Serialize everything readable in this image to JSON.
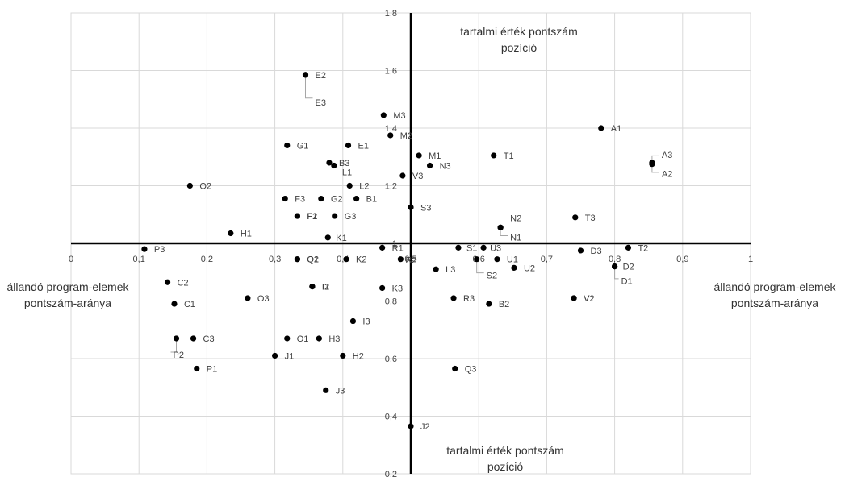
{
  "chart_data": {
    "type": "scatter",
    "title": "",
    "x_range": [
      0,
      1
    ],
    "y_range": [
      0.2,
      1.8
    ],
    "x_ticks": [
      "0",
      "0,1",
      "0,2",
      "0,3",
      "0,4",
      "0,5",
      "0,6",
      "0,7",
      "0,8",
      "0,9",
      "1"
    ],
    "y_ticks": [
      "0,2",
      "0,4",
      "0,6",
      "0,8",
      "1",
      "1,2",
      "1,4",
      "1,6",
      "1,8"
    ],
    "grid": true,
    "y_label_top_line1": "tartalmi érték pontszám",
    "y_label_top_line2": "pozíció",
    "y_label_bottom_line1": "tartalmi érték pontszám",
    "y_label_bottom_line2": "pozíció",
    "x_label_left_line1": "állandó program-elemek",
    "x_label_left_line2": "pontszám-aránya",
    "x_label_right_line1": "állandó program-elemek",
    "x_label_right_line2": "pontszám-aránya",
    "points": [
      {
        "label": "A1",
        "x": 0.78,
        "y": 1.4
      },
      {
        "label": "A2",
        "x": 0.855,
        "y": 1.275
      },
      {
        "label": "A3",
        "x": 0.855,
        "y": 1.28
      },
      {
        "label": "B1",
        "x": 0.42,
        "y": 1.155
      },
      {
        "label": "B2",
        "x": 0.615,
        "y": 0.79
      },
      {
        "label": "B3",
        "x": 0.38,
        "y": 1.28
      },
      {
        "label": "C1",
        "x": 0.152,
        "y": 0.79
      },
      {
        "label": "C2",
        "x": 0.142,
        "y": 0.865
      },
      {
        "label": "C3",
        "x": 0.18,
        "y": 0.67
      },
      {
        "label": "D1",
        "x": 0.8,
        "y": 0.92
      },
      {
        "label": "D2",
        "x": 0.8,
        "y": 0.92
      },
      {
        "label": "D3",
        "x": 0.75,
        "y": 0.975
      },
      {
        "label": "E1",
        "x": 0.408,
        "y": 1.34
      },
      {
        "label": "E2",
        "x": 0.345,
        "y": 1.585
      },
      {
        "label": "E3",
        "x": 0.345,
        "y": 1.585
      },
      {
        "label": "F1",
        "x": 0.333,
        "y": 1.095
      },
      {
        "label": "F2",
        "x": 0.333,
        "y": 1.095
      },
      {
        "label": "F3",
        "x": 0.315,
        "y": 1.155
      },
      {
        "label": "G1",
        "x": 0.318,
        "y": 1.34
      },
      {
        "label": "G2",
        "x": 0.368,
        "y": 1.155
      },
      {
        "label": "G3",
        "x": 0.388,
        "y": 1.095
      },
      {
        "label": "H1",
        "x": 0.235,
        "y": 1.035
      },
      {
        "label": "H2",
        "x": 0.4,
        "y": 0.61
      },
      {
        "label": "H3",
        "x": 0.365,
        "y": 0.67
      },
      {
        "label": "I1",
        "x": 0.355,
        "y": 0.85
      },
      {
        "label": "I2",
        "x": 0.355,
        "y": 0.85
      },
      {
        "label": "I3",
        "x": 0.415,
        "y": 0.73
      },
      {
        "label": "J1",
        "x": 0.3,
        "y": 0.61
      },
      {
        "label": "J2",
        "x": 0.5,
        "y": 0.365
      },
      {
        "label": "J3",
        "x": 0.375,
        "y": 0.49
      },
      {
        "label": "K1",
        "x": 0.378,
        "y": 1.02
      },
      {
        "label": "K2",
        "x": 0.405,
        "y": 0.945
      },
      {
        "label": "K3",
        "x": 0.458,
        "y": 0.845
      },
      {
        "label": "L1",
        "x": 0.387,
        "y": 1.27
      },
      {
        "label": "L2",
        "x": 0.41,
        "y": 1.2
      },
      {
        "label": "L3",
        "x": 0.537,
        "y": 0.91
      },
      {
        "label": "M1",
        "x": 0.512,
        "y": 1.305
      },
      {
        "label": "M2",
        "x": 0.47,
        "y": 1.375
      },
      {
        "label": "M3",
        "x": 0.46,
        "y": 1.445
      },
      {
        "label": "N1",
        "x": 0.632,
        "y": 1.055
      },
      {
        "label": "N2",
        "x": 0.632,
        "y": 1.055
      },
      {
        "label": "N3",
        "x": 0.528,
        "y": 1.27
      },
      {
        "label": "O1",
        "x": 0.318,
        "y": 0.67
      },
      {
        "label": "O2",
        "x": 0.175,
        "y": 1.2
      },
      {
        "label": "O3",
        "x": 0.26,
        "y": 0.81
      },
      {
        "label": "P1",
        "x": 0.185,
        "y": 0.565
      },
      {
        "label": "P2",
        "x": 0.155,
        "y": 0.67
      },
      {
        "label": "P3",
        "x": 0.108,
        "y": 0.98
      },
      {
        "label": "Q1",
        "x": 0.333,
        "y": 0.945
      },
      {
        "label": "Q2",
        "x": 0.333,
        "y": 0.945
      },
      {
        "label": "Q3",
        "x": 0.565,
        "y": 0.565
      },
      {
        "label": "R1",
        "x": 0.458,
        "y": 0.985
      },
      {
        "label": "R2",
        "x": 0.485,
        "y": 0.945
      },
      {
        "label": "R3",
        "x": 0.563,
        "y": 0.81
      },
      {
        "label": "S1",
        "x": 0.57,
        "y": 0.985
      },
      {
        "label": "S2",
        "x": 0.597,
        "y": 0.945
      },
      {
        "label": "S3",
        "x": 0.5,
        "y": 1.125
      },
      {
        "label": "T1",
        "x": 0.622,
        "y": 1.305
      },
      {
        "label": "T2",
        "x": 0.82,
        "y": 0.985
      },
      {
        "label": "T3",
        "x": 0.742,
        "y": 1.09
      },
      {
        "label": "U1",
        "x": 0.627,
        "y": 0.945
      },
      {
        "label": "U2",
        "x": 0.652,
        "y": 0.915
      },
      {
        "label": "U3",
        "x": 0.607,
        "y": 0.985
      },
      {
        "label": "V1",
        "x": 0.74,
        "y": 0.81
      },
      {
        "label": "V2",
        "x": 0.74,
        "y": 0.81
      },
      {
        "label": "V3",
        "x": 0.488,
        "y": 1.235
      }
    ]
  }
}
